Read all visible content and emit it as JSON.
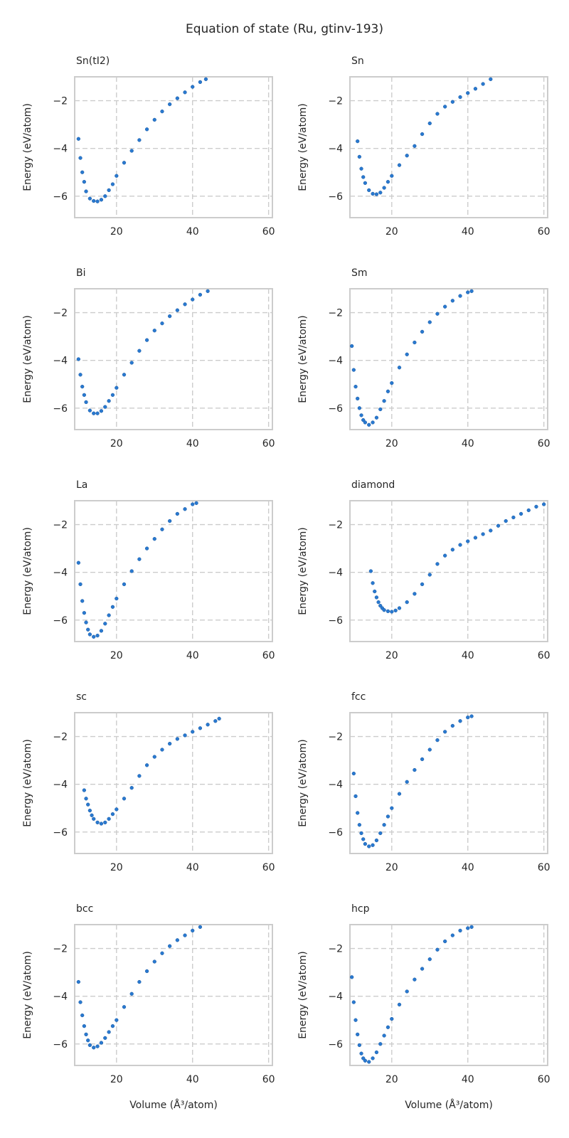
{
  "figure": {
    "title": "Equation of state (Ru, gtinv-193)",
    "marker_color": "#2979d0",
    "grid_color": "#cccccc"
  },
  "chart_data": [
    {
      "type": "scatter",
      "title": "Sn(tI2)",
      "xlabel": "",
      "ylabel": "Energy (eV/atom)",
      "xlim": [
        9,
        61
      ],
      "ylim": [
        -6.9,
        -1.0
      ],
      "xticks": [
        "20",
        "40",
        "60"
      ],
      "yticks": [
        "−2",
        "−4",
        "−6"
      ],
      "grid": true,
      "x": [
        10.0,
        10.5,
        11.0,
        11.5,
        12.0,
        13.0,
        14.0,
        15.0,
        16.0,
        17.0,
        18.0,
        19.0,
        20.0,
        22.0,
        24.0,
        26.0,
        28.0,
        30.0,
        32.0,
        34.0,
        36.0,
        38.0,
        40.0,
        42.0,
        43.5
      ],
      "y": [
        -3.6,
        -4.4,
        -5.0,
        -5.4,
        -5.8,
        -6.1,
        -6.2,
        -6.22,
        -6.15,
        -6.0,
        -5.75,
        -5.5,
        -5.15,
        -4.6,
        -4.1,
        -3.65,
        -3.2,
        -2.8,
        -2.45,
        -2.15,
        -1.9,
        -1.65,
        -1.42,
        -1.22,
        -1.1
      ]
    },
    {
      "type": "scatter",
      "title": "Sn",
      "xlabel": "",
      "ylabel": "Energy (eV/atom)",
      "xlim": [
        9,
        61
      ],
      "ylim": [
        -6.9,
        -1.0
      ],
      "xticks": [
        "20",
        "40",
        "60"
      ],
      "yticks": [
        "−2",
        "−4",
        "−6"
      ],
      "grid": true,
      "x": [
        11.0,
        11.5,
        12.0,
        12.5,
        13.0,
        14.0,
        15.0,
        16.0,
        17.0,
        18.0,
        19.0,
        20.0,
        22.0,
        24.0,
        26.0,
        28.0,
        30.0,
        32.0,
        34.0,
        36.0,
        38.0,
        40.0,
        42.0,
        44.0,
        46.0
      ],
      "y": [
        -3.7,
        -4.35,
        -4.85,
        -5.2,
        -5.45,
        -5.75,
        -5.9,
        -5.92,
        -5.85,
        -5.65,
        -5.4,
        -5.15,
        -4.7,
        -4.3,
        -3.9,
        -3.4,
        -2.95,
        -2.55,
        -2.25,
        -2.05,
        -1.85,
        -1.68,
        -1.5,
        -1.3,
        -1.1
      ]
    },
    {
      "type": "scatter",
      "title": "Bi",
      "xlabel": "",
      "ylabel": "Energy (eV/atom)",
      "xlim": [
        9,
        61
      ],
      "ylim": [
        -6.9,
        -1.0
      ],
      "xticks": [
        "20",
        "40",
        "60"
      ],
      "yticks": [
        "−2",
        "−4",
        "−6"
      ],
      "grid": true,
      "x": [
        10.0,
        10.5,
        11.0,
        11.5,
        12.0,
        13.0,
        14.0,
        15.0,
        16.0,
        17.0,
        18.0,
        19.0,
        20.0,
        22.0,
        24.0,
        26.0,
        28.0,
        30.0,
        32.0,
        34.0,
        36.0,
        38.0,
        40.0,
        42.0,
        44.0
      ],
      "y": [
        -3.95,
        -4.6,
        -5.1,
        -5.45,
        -5.75,
        -6.1,
        -6.22,
        -6.22,
        -6.12,
        -5.95,
        -5.7,
        -5.45,
        -5.15,
        -4.6,
        -4.1,
        -3.6,
        -3.15,
        -2.75,
        -2.45,
        -2.15,
        -1.9,
        -1.65,
        -1.45,
        -1.25,
        -1.1
      ]
    },
    {
      "type": "scatter",
      "title": "Sm",
      "xlabel": "",
      "ylabel": "Energy (eV/atom)",
      "xlim": [
        9,
        61
      ],
      "ylim": [
        -6.9,
        -1.0
      ],
      "xticks": [
        "20",
        "40",
        "60"
      ],
      "yticks": [
        "−2",
        "−4",
        "−6"
      ],
      "grid": true,
      "x": [
        9.5,
        10.0,
        10.5,
        11.0,
        11.5,
        12.0,
        12.5,
        13.0,
        14.0,
        15.0,
        16.0,
        17.0,
        18.0,
        19.0,
        20.0,
        22.0,
        24.0,
        26.0,
        28.0,
        30.0,
        32.0,
        34.0,
        36.0,
        38.0,
        40.0,
        41.0
      ],
      "y": [
        -3.4,
        -4.4,
        -5.1,
        -5.6,
        -6.0,
        -6.3,
        -6.5,
        -6.6,
        -6.7,
        -6.6,
        -6.4,
        -6.05,
        -5.7,
        -5.3,
        -4.95,
        -4.3,
        -3.75,
        -3.25,
        -2.8,
        -2.4,
        -2.05,
        -1.75,
        -1.5,
        -1.3,
        -1.15,
        -1.1
      ]
    },
    {
      "type": "scatter",
      "title": "La",
      "xlabel": "",
      "ylabel": "Energy (eV/atom)",
      "xlim": [
        9,
        61
      ],
      "ylim": [
        -6.9,
        -1.0
      ],
      "xticks": [
        "20",
        "40",
        "60"
      ],
      "yticks": [
        "−2",
        "−4",
        "−6"
      ],
      "grid": true,
      "x": [
        10.0,
        10.5,
        11.0,
        11.5,
        12.0,
        12.5,
        13.0,
        14.0,
        15.0,
        16.0,
        17.0,
        18.0,
        19.0,
        20.0,
        22.0,
        24.0,
        26.0,
        28.0,
        30.0,
        32.0,
        34.0,
        36.0,
        38.0,
        40.0,
        41.0
      ],
      "y": [
        -3.6,
        -4.5,
        -5.2,
        -5.7,
        -6.1,
        -6.4,
        -6.6,
        -6.7,
        -6.65,
        -6.45,
        -6.15,
        -5.8,
        -5.45,
        -5.1,
        -4.5,
        -3.95,
        -3.45,
        -3.0,
        -2.6,
        -2.2,
        -1.85,
        -1.55,
        -1.35,
        -1.15,
        -1.1
      ]
    },
    {
      "type": "scatter",
      "title": "diamond",
      "xlabel": "",
      "ylabel": "Energy (eV/atom)",
      "xlim": [
        9,
        61
      ],
      "ylim": [
        -6.9,
        -1.0
      ],
      "xticks": [
        "20",
        "40",
        "60"
      ],
      "yticks": [
        "−2",
        "−4",
        "−6"
      ],
      "grid": true,
      "x": [
        14.5,
        15.0,
        15.5,
        16.0,
        16.5,
        17.0,
        17.5,
        18.0,
        19.0,
        20.0,
        21.0,
        22.0,
        24.0,
        26.0,
        28.0,
        30.0,
        32.0,
        34.0,
        36.0,
        38.0,
        40.0,
        42.0,
        44.0,
        46.0,
        48.0,
        50.0,
        52.0,
        54.0,
        56.0,
        58.0,
        60.0
      ],
      "y": [
        -3.95,
        -4.45,
        -4.8,
        -5.05,
        -5.25,
        -5.4,
        -5.5,
        -5.58,
        -5.63,
        -5.65,
        -5.6,
        -5.5,
        -5.25,
        -4.9,
        -4.5,
        -4.1,
        -3.65,
        -3.3,
        -3.05,
        -2.85,
        -2.7,
        -2.55,
        -2.4,
        -2.25,
        -2.05,
        -1.85,
        -1.7,
        -1.55,
        -1.4,
        -1.25,
        -1.15
      ]
    },
    {
      "type": "scatter",
      "title": "sc",
      "xlabel": "",
      "ylabel": "Energy (eV/atom)",
      "xlim": [
        9,
        61
      ],
      "ylim": [
        -6.9,
        -1.0
      ],
      "xticks": [
        "20",
        "40",
        "60"
      ],
      "yticks": [
        "−2",
        "−4",
        "−6"
      ],
      "grid": true,
      "x": [
        11.5,
        12.0,
        12.5,
        13.0,
        13.5,
        14.0,
        15.0,
        16.0,
        17.0,
        18.0,
        19.0,
        20.0,
        22.0,
        24.0,
        26.0,
        28.0,
        30.0,
        32.0,
        34.0,
        36.0,
        38.0,
        40.0,
        42.0,
        44.0,
        46.0,
        47.0
      ],
      "y": [
        -4.25,
        -4.6,
        -4.85,
        -5.1,
        -5.3,
        -5.45,
        -5.6,
        -5.65,
        -5.6,
        -5.45,
        -5.25,
        -5.05,
        -4.6,
        -4.15,
        -3.65,
        -3.2,
        -2.85,
        -2.55,
        -2.3,
        -2.1,
        -1.95,
        -1.8,
        -1.65,
        -1.5,
        -1.35,
        -1.25
      ]
    },
    {
      "type": "scatter",
      "title": "fcc",
      "xlabel": "",
      "ylabel": "Energy (eV/atom)",
      "xlim": [
        9,
        61
      ],
      "ylim": [
        -6.9,
        -1.0
      ],
      "xticks": [
        "20",
        "40",
        "60"
      ],
      "yticks": [
        "−2",
        "−4",
        "−6"
      ],
      "grid": true,
      "x": [
        10.0,
        10.5,
        11.0,
        11.5,
        12.0,
        12.5,
        13.0,
        14.0,
        15.0,
        16.0,
        17.0,
        18.0,
        19.0,
        20.0,
        22.0,
        24.0,
        26.0,
        28.0,
        30.0,
        32.0,
        34.0,
        36.0,
        38.0,
        40.0,
        41.0
      ],
      "y": [
        -3.55,
        -4.5,
        -5.2,
        -5.7,
        -6.05,
        -6.3,
        -6.5,
        -6.6,
        -6.55,
        -6.35,
        -6.05,
        -5.7,
        -5.35,
        -5.0,
        -4.4,
        -3.9,
        -3.4,
        -2.95,
        -2.55,
        -2.15,
        -1.8,
        -1.55,
        -1.35,
        -1.2,
        -1.15
      ]
    },
    {
      "type": "scatter",
      "title": "bcc",
      "xlabel": "Volume (Å³/atom)",
      "ylabel": "Energy (eV/atom)",
      "xlim": [
        9,
        61
      ],
      "ylim": [
        -6.9,
        -1.0
      ],
      "xticks": [
        "20",
        "40",
        "60"
      ],
      "yticks": [
        "−2",
        "−4",
        "−6"
      ],
      "grid": true,
      "x": [
        10.0,
        10.5,
        11.0,
        11.5,
        12.0,
        12.5,
        13.0,
        14.0,
        15.0,
        16.0,
        17.0,
        18.0,
        19.0,
        20.0,
        22.0,
        24.0,
        26.0,
        28.0,
        30.0,
        32.0,
        34.0,
        36.0,
        38.0,
        40.0,
        42.0
      ],
      "y": [
        -3.4,
        -4.25,
        -4.8,
        -5.25,
        -5.6,
        -5.85,
        -6.05,
        -6.15,
        -6.1,
        -5.95,
        -5.75,
        -5.5,
        -5.25,
        -5.0,
        -4.45,
        -3.9,
        -3.4,
        -2.95,
        -2.55,
        -2.2,
        -1.9,
        -1.65,
        -1.45,
        -1.25,
        -1.1
      ]
    },
    {
      "type": "scatter",
      "title": "hcp",
      "xlabel": "Volume (Å³/atom)",
      "ylabel": "Energy (eV/atom)",
      "xlim": [
        9,
        61
      ],
      "ylim": [
        -6.9,
        -1.0
      ],
      "xticks": [
        "20",
        "40",
        "60"
      ],
      "yticks": [
        "−2",
        "−4",
        "−6"
      ],
      "grid": true,
      "x": [
        9.5,
        10.0,
        10.5,
        11.0,
        11.5,
        12.0,
        12.5,
        13.0,
        14.0,
        15.0,
        16.0,
        17.0,
        18.0,
        19.0,
        20.0,
        22.0,
        24.0,
        26.0,
        28.0,
        30.0,
        32.0,
        34.0,
        36.0,
        38.0,
        40.0,
        41.0
      ],
      "y": [
        -3.2,
        -4.25,
        -5.0,
        -5.6,
        -6.05,
        -6.4,
        -6.6,
        -6.7,
        -6.75,
        -6.6,
        -6.35,
        -6.0,
        -5.65,
        -5.3,
        -4.95,
        -4.35,
        -3.8,
        -3.3,
        -2.85,
        -2.45,
        -2.05,
        -1.7,
        -1.45,
        -1.25,
        -1.15,
        -1.1
      ]
    }
  ]
}
